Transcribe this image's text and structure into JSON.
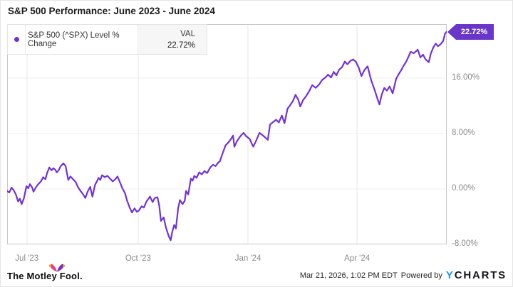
{
  "title": "S&P 500 Performance: June 2023 - June 2024",
  "legend": {
    "val_header": "VAL",
    "series_name": "S&P 500 (^SPX) Level % Change"
  },
  "footer": {
    "brand": "The Motley Fool.",
    "timestamp": "Mar 21, 2026, 1:02 PM EDT",
    "powered_by": "Powered by",
    "ycharts_y": "Y",
    "ycharts_rest": "CHARTS"
  },
  "chart_data": {
    "type": "line",
    "title": "S&P 500 Performance: June 2023 - June 2024",
    "xlabel": "",
    "ylabel": "Level % Change",
    "x_range": [
      "Jun 2023",
      "Jun 2024"
    ],
    "ylim": [
      -8,
      23.8
    ],
    "grid": true,
    "legend_position": "top-left",
    "colors": {
      "hgrid": "#efefef",
      "vgrid": "#e6e6e6",
      "border": "#c8c8c8",
      "accent": "#7232d4",
      "badge": "#6936c9"
    },
    "y_ticks": [
      {
        "label": "16.00%",
        "value": 16
      },
      {
        "label": "8.00%",
        "value": 8
      },
      {
        "label": "0.00%",
        "value": 0
      },
      {
        "label": "-8.00%",
        "value": -8
      }
    ],
    "x_ticks": [
      {
        "label": "Jul '23",
        "t": 0.045
      },
      {
        "label": "Oct '23",
        "t": 0.298
      },
      {
        "label": "Jan '24",
        "t": 0.548
      },
      {
        "label": "Apr '24",
        "t": 0.796
      }
    ],
    "series": [
      {
        "name": "S&P 500 (^SPX) Level % Change",
        "color": "#7232d4",
        "last_value": 22.72,
        "last_value_label": "22.72%",
        "points": [
          [
            0,
            -0.3
          ],
          [
            0.005,
            -0.5
          ],
          [
            0.01,
            0.2
          ],
          [
            0.015,
            -0.2
          ],
          [
            0.02,
            -0.8
          ],
          [
            0.025,
            -1.8
          ],
          [
            0.029,
            -1.4
          ],
          [
            0.033,
            -2.2
          ],
          [
            0.038,
            -1.4
          ],
          [
            0.044,
            0.4
          ],
          [
            0.048,
            0.1
          ],
          [
            0.052,
            0.7
          ],
          [
            0.057,
            0.2
          ],
          [
            0.06,
            -0.4
          ],
          [
            0.066,
            0.3
          ],
          [
            0.071,
            0.7
          ],
          [
            0.077,
            1.1
          ],
          [
            0.082,
            1.7
          ],
          [
            0.087,
            1.4
          ],
          [
            0.091,
            2.3
          ],
          [
            0.096,
            3.1
          ],
          [
            0.101,
            2.7
          ],
          [
            0.105,
            3
          ],
          [
            0.109,
            2.8
          ],
          [
            0.113,
            2.4
          ],
          [
            0.117,
            2.7
          ],
          [
            0.122,
            3.3
          ],
          [
            0.128,
            3.7
          ],
          [
            0.133,
            3.3
          ],
          [
            0.139,
            1.3
          ],
          [
            0.144,
            1.8
          ],
          [
            0.15,
            1.4
          ],
          [
            0.156,
            1
          ],
          [
            0.161,
            0.3
          ],
          [
            0.166,
            -0.2
          ],
          [
            0.172,
            -0.7
          ],
          [
            0.178,
            -1.3
          ],
          [
            0.183,
            -0.4
          ],
          [
            0.189,
            0.3
          ],
          [
            0.194,
            -1.1
          ],
          [
            0.2,
            0.6
          ],
          [
            0.205,
            1.2
          ],
          [
            0.208,
            1.6
          ],
          [
            0.212,
            1.3
          ],
          [
            0.216,
            2
          ],
          [
            0.222,
            1.7
          ],
          [
            0.228,
            1.9
          ],
          [
            0.234,
            1.5
          ],
          [
            0.24,
            1.1
          ],
          [
            0.246,
            1.4
          ],
          [
            0.251,
            1.8
          ],
          [
            0.257,
            0.9
          ],
          [
            0.262,
            0.1
          ],
          [
            0.268,
            -0.6
          ],
          [
            0.273,
            -1.7
          ],
          [
            0.279,
            -2.7
          ],
          [
            0.284,
            -3.4
          ],
          [
            0.29,
            -2.8
          ],
          [
            0.295,
            -3.3
          ],
          [
            0.3,
            -3.1
          ],
          [
            0.306,
            -2.5
          ],
          [
            0.311,
            -2.7
          ],
          [
            0.317,
            -1.8
          ],
          [
            0.325,
            -1.1
          ],
          [
            0.331,
            -1.9
          ],
          [
            0.336,
            -1.3
          ],
          [
            0.342,
            -1.2
          ],
          [
            0.346,
            -2.4
          ],
          [
            0.35,
            -4.6
          ],
          [
            0.356,
            -4.1
          ],
          [
            0.361,
            -5.5
          ],
          [
            0.366,
            -6.5
          ],
          [
            0.369,
            -7
          ],
          [
            0.372,
            -7.4
          ],
          [
            0.376,
            -6.1
          ],
          [
            0.38,
            -5.2
          ],
          [
            0.384,
            -5.7
          ],
          [
            0.389,
            -2.8
          ],
          [
            0.393,
            -1.6
          ],
          [
            0.399,
            -2.2
          ],
          [
            0.404,
            -1.7
          ],
          [
            0.407,
            -0.3
          ],
          [
            0.412,
            -0.8
          ],
          [
            0.418,
            1.5
          ],
          [
            0.422,
            1.2
          ],
          [
            0.426,
            1.9
          ],
          [
            0.431,
            1.6
          ],
          [
            0.437,
            2.4
          ],
          [
            0.443,
            2.1
          ],
          [
            0.449,
            2.6
          ],
          [
            0.455,
            2.3
          ],
          [
            0.462,
            3.1
          ],
          [
            0.468,
            3.5
          ],
          [
            0.474,
            3.3
          ],
          [
            0.48,
            3.8
          ],
          [
            0.484,
            4
          ],
          [
            0.49,
            5.1
          ],
          [
            0.497,
            6.3
          ],
          [
            0.503,
            6.7
          ],
          [
            0.509,
            7.2
          ],
          [
            0.514,
            7.7
          ],
          [
            0.517,
            6.1
          ],
          [
            0.522,
            6.8
          ],
          [
            0.528,
            7.4
          ],
          [
            0.533,
            7.8
          ],
          [
            0.538,
            8.1
          ],
          [
            0.544,
            7.6
          ],
          [
            0.552,
            7.2
          ],
          [
            0.556,
            6.6
          ],
          [
            0.56,
            6.1
          ],
          [
            0.566,
            6.9
          ],
          [
            0.574,
            8.1
          ],
          [
            0.58,
            7.8
          ],
          [
            0.586,
            7.5
          ],
          [
            0.593,
            7.1
          ],
          [
            0.598,
            9.3
          ],
          [
            0.604,
            9.6
          ],
          [
            0.612,
            10
          ],
          [
            0.618,
            9.6
          ],
          [
            0.625,
            10.6
          ],
          [
            0.631,
            9.5
          ],
          [
            0.638,
            11.6
          ],
          [
            0.644,
            12.1
          ],
          [
            0.65,
            12.7
          ],
          [
            0.656,
            13.6
          ],
          [
            0.662,
            12.9
          ],
          [
            0.667,
            11.9
          ],
          [
            0.673,
            12.8
          ],
          [
            0.68,
            13.4
          ],
          [
            0.687,
            14.1
          ],
          [
            0.694,
            15
          ],
          [
            0.702,
            14.6
          ],
          [
            0.71,
            15.1
          ],
          [
            0.716,
            15.7
          ],
          [
            0.724,
            16.1
          ],
          [
            0.73,
            16.5
          ],
          [
            0.737,
            16.1
          ],
          [
            0.743,
            16.9
          ],
          [
            0.749,
            16.4
          ],
          [
            0.755,
            17.2
          ],
          [
            0.762,
            17.6
          ],
          [
            0.768,
            18.4
          ],
          [
            0.774,
            18
          ],
          [
            0.781,
            18.5
          ],
          [
            0.787,
            18.7
          ],
          [
            0.793,
            18.4
          ],
          [
            0.8,
            17.5
          ],
          [
            0.806,
            16.3
          ],
          [
            0.813,
            17.2
          ],
          [
            0.82,
            17.7
          ],
          [
            0.828,
            15.7
          ],
          [
            0.836,
            14.3
          ],
          [
            0.842,
            13.1
          ],
          [
            0.847,
            12.2
          ],
          [
            0.852,
            13.6
          ],
          [
            0.858,
            14.6
          ],
          [
            0.864,
            14.2
          ],
          [
            0.87,
            14.8
          ],
          [
            0.877,
            13.8
          ],
          [
            0.885,
            15.9
          ],
          [
            0.891,
            16.6
          ],
          [
            0.896,
            17.1
          ],
          [
            0.902,
            17.8
          ],
          [
            0.908,
            18.4
          ],
          [
            0.913,
            19.1
          ],
          [
            0.918,
            19.8
          ],
          [
            0.925,
            19.6
          ],
          [
            0.934,
            20.1
          ],
          [
            0.94,
            19
          ],
          [
            0.946,
            19.4
          ],
          [
            0.952,
            18.7
          ],
          [
            0.959,
            18.3
          ],
          [
            0.964,
            19.6
          ],
          [
            0.97,
            20.5
          ],
          [
            0.975,
            21
          ],
          [
            0.98,
            20.6
          ],
          [
            0.986,
            20.9
          ],
          [
            0.992,
            21.4
          ],
          [
            0.996,
            22.4
          ],
          [
            1,
            22.72
          ]
        ]
      }
    ]
  }
}
